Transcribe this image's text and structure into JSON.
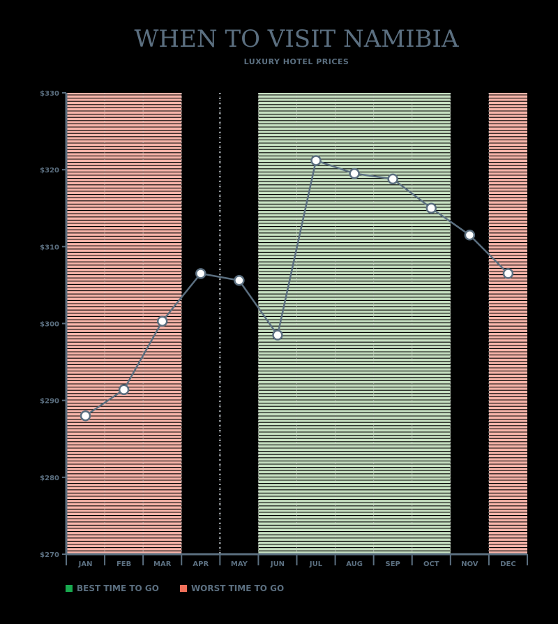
{
  "header": {
    "title": "WHEN TO VISIT NAMIBIA",
    "subtitle": "LUXURY HOTEL PRICES"
  },
  "colors": {
    "line": "#5b6f80",
    "best": "#18a94f",
    "worst": "#f0705a",
    "best_band": "#c6dfc1",
    "worst_band": "#f7b4a9",
    "axis": "#5b6f80"
  },
  "legend": [
    {
      "label": "BEST TIME TO GO",
      "color": "#18a94f"
    },
    {
      "label": "WORST TIME TO GO",
      "color": "#f0705a"
    }
  ],
  "chart_data": {
    "type": "line",
    "title": "WHEN TO VISIT NAMIBIA",
    "subtitle": "LUXURY HOTEL PRICES",
    "categories": [
      "JAN",
      "FEB",
      "MAR",
      "APR",
      "MAY",
      "JUN",
      "JUL",
      "AUG",
      "SEP",
      "OCT",
      "NOV",
      "DEC"
    ],
    "series": [
      {
        "values": [
          288.0,
          291.4,
          300.3,
          306.5,
          305.6,
          298.5,
          321.2,
          319.5,
          318.8,
          315.0,
          311.5,
          306.5
        ]
      }
    ],
    "ylim": [
      270,
      330
    ],
    "yticks": [
      270,
      280,
      290,
      300,
      310,
      320,
      330
    ],
    "ytick_labels": [
      "$270",
      "$280",
      "$290",
      "$300",
      "$310",
      "$320",
      "$330"
    ],
    "shaded_ranges": [
      {
        "from": "JAN",
        "to": "MAR",
        "kind": "worst"
      },
      {
        "from": "JUN",
        "to": "OCT",
        "kind": "best"
      },
      {
        "from": "DEC",
        "to": "DEC",
        "kind": "worst"
      }
    ],
    "divider_after": "APR",
    "grid": false
  }
}
